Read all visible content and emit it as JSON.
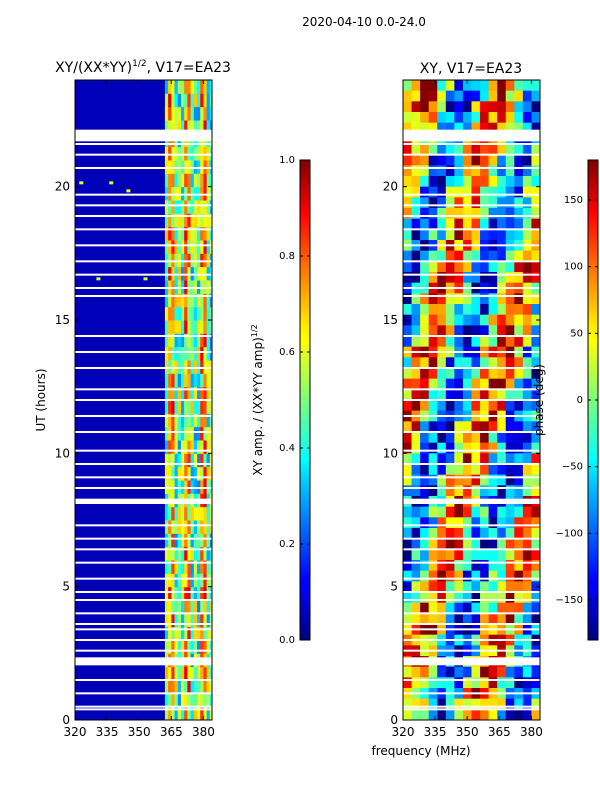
{
  "suptitle": "2020-04-10 0.0-24.0",
  "shared_xlabel": "frequency (MHz)",
  "chart_data": [
    {
      "type": "heatmap",
      "title_main": "XY/(XX*YY)",
      "title_sup": "1/2",
      "title_rest": ", V17=EA23",
      "xlabel": "",
      "ylabel": "UT (hours)",
      "xlim": [
        320,
        384
      ],
      "ylim": [
        0,
        24
      ],
      "xticks": [
        320,
        335,
        350,
        365,
        380
      ],
      "yticks": [
        0,
        5,
        10,
        15,
        20
      ],
      "colorbar": {
        "label_main": "XY amp. / (XX*YY amp)",
        "label_sup": "1/2",
        "range": [
          0.0,
          1.0
        ],
        "ticks": [
          0.0,
          0.2,
          0.4,
          0.6,
          0.8,
          1.0
        ],
        "tick_labels": [
          "0.0",
          "0.2",
          "0.4",
          "0.6",
          "0.8",
          "1.0"
        ],
        "colormap": "jet"
      }
    },
    {
      "type": "heatmap",
      "title_main": "XY, V17=EA23",
      "xlabel": "frequency (MHz)",
      "ylabel": "",
      "xlim": [
        320,
        384
      ],
      "ylim": [
        0,
        24
      ],
      "xticks": [
        320,
        335,
        350,
        365,
        380
      ],
      "yticks": [
        0,
        5,
        10,
        15,
        20
      ],
      "colorbar": {
        "label_main": "phase (deg)",
        "range": [
          -180,
          180
        ],
        "ticks": [
          -150,
          -100,
          -50,
          0,
          50,
          100,
          150
        ],
        "tick_labels": [
          "−150",
          "−100",
          "−50",
          "0",
          "50",
          "100",
          "150"
        ],
        "colormap": "jet"
      }
    }
  ],
  "flagged_gaps_ut": [
    0.4,
    0.5,
    1.0,
    1.5,
    2.1,
    2.3,
    2.6,
    3.0,
    3.4,
    3.6,
    4.0,
    4.5,
    4.8,
    5.3,
    5.9,
    6.4,
    6.8,
    7.3,
    8.2,
    8.7,
    9.1,
    9.6,
    10.1,
    10.8,
    11.4,
    12.0,
    12.4,
    13.2,
    13.8,
    14.4,
    15.9,
    16.2,
    16.7,
    17.2,
    17.8,
    18.4,
    18.9,
    19.3,
    19.7,
    20.7,
    21.2,
    21.6,
    22.1
  ]
}
